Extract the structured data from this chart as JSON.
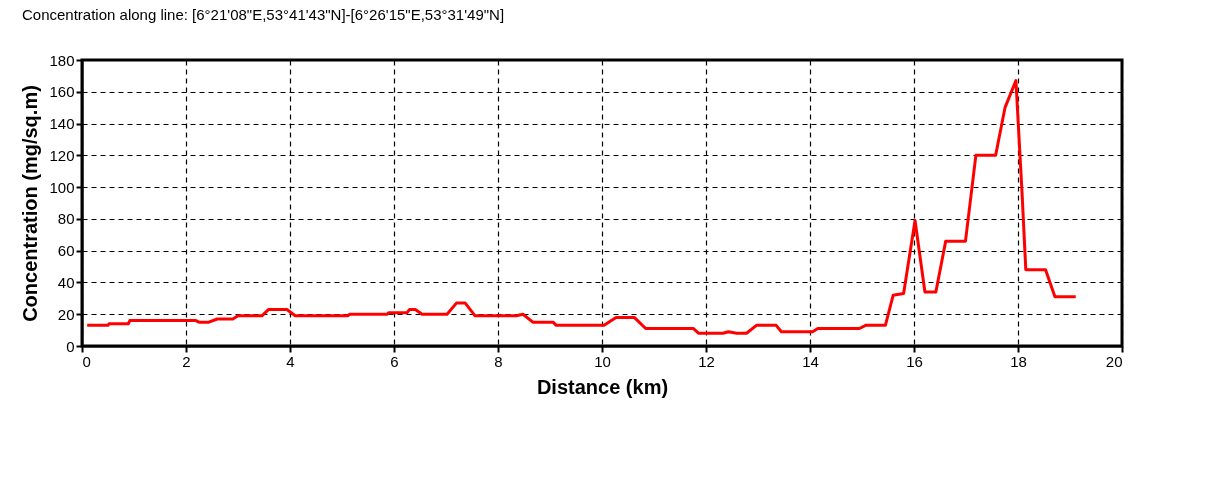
{
  "chart_data": {
    "type": "line",
    "title": "Concentration along line: [6°21'08\"E,53°41'43\"N]-[6°26'15\"E,53°31'49\"N]",
    "xlabel": "Distance (km)",
    "ylabel": "Concentration (mg/sq.m)",
    "x": [
      0.1,
      0.5,
      0.52,
      0.89,
      0.92,
      2.19,
      2.25,
      2.44,
      2.6,
      2.9,
      3.0,
      3.46,
      3.59,
      3.94,
      4.1,
      5.11,
      5.15,
      5.87,
      5.9,
      6.25,
      6.3,
      6.41,
      6.54,
      7.02,
      7.2,
      7.37,
      7.56,
      8.35,
      8.48,
      8.67,
      9.06,
      9.12,
      10.04,
      10.27,
      10.62,
      10.84,
      11.76,
      11.86,
      12.33,
      12.43,
      12.59,
      12.78,
      12.97,
      13.35,
      13.45,
      14.05,
      14.15,
      14.95,
      15.07,
      15.45,
      15.6,
      15.8,
      16.02,
      16.21,
      16.42,
      16.61,
      16.99,
      17.19,
      17.57,
      17.75,
      17.96,
      18.08,
      18.15,
      18.53,
      18.71,
      19.11
    ],
    "series": [
      {
        "color": "#ff0000",
        "values": [
          13,
          13,
          14,
          14,
          16,
          16,
          15,
          15,
          17,
          17,
          19,
          19,
          23,
          23,
          19,
          19,
          20,
          20,
          21,
          21,
          23,
          23,
          20,
          20,
          27,
          27,
          19,
          19,
          20,
          15,
          15,
          13,
          13,
          18,
          18,
          11,
          11,
          8,
          8,
          9,
          8,
          8,
          13,
          13,
          9,
          9,
          11,
          11,
          13,
          13,
          32,
          33,
          79,
          34,
          34,
          66,
          66,
          120,
          120,
          150,
          167,
          95,
          48,
          48,
          31,
          31
        ]
      }
    ],
    "xlim": [
      0,
      20
    ],
    "xticks": [
      0,
      2,
      4,
      6,
      8,
      10,
      12,
      14,
      16,
      18,
      20
    ],
    "ylim": [
      0,
      180
    ],
    "yticks": [
      0,
      20,
      40,
      60,
      80,
      100,
      120,
      140,
      160,
      180
    ],
    "grid": true,
    "marker": "none",
    "line_style": "solid"
  }
}
